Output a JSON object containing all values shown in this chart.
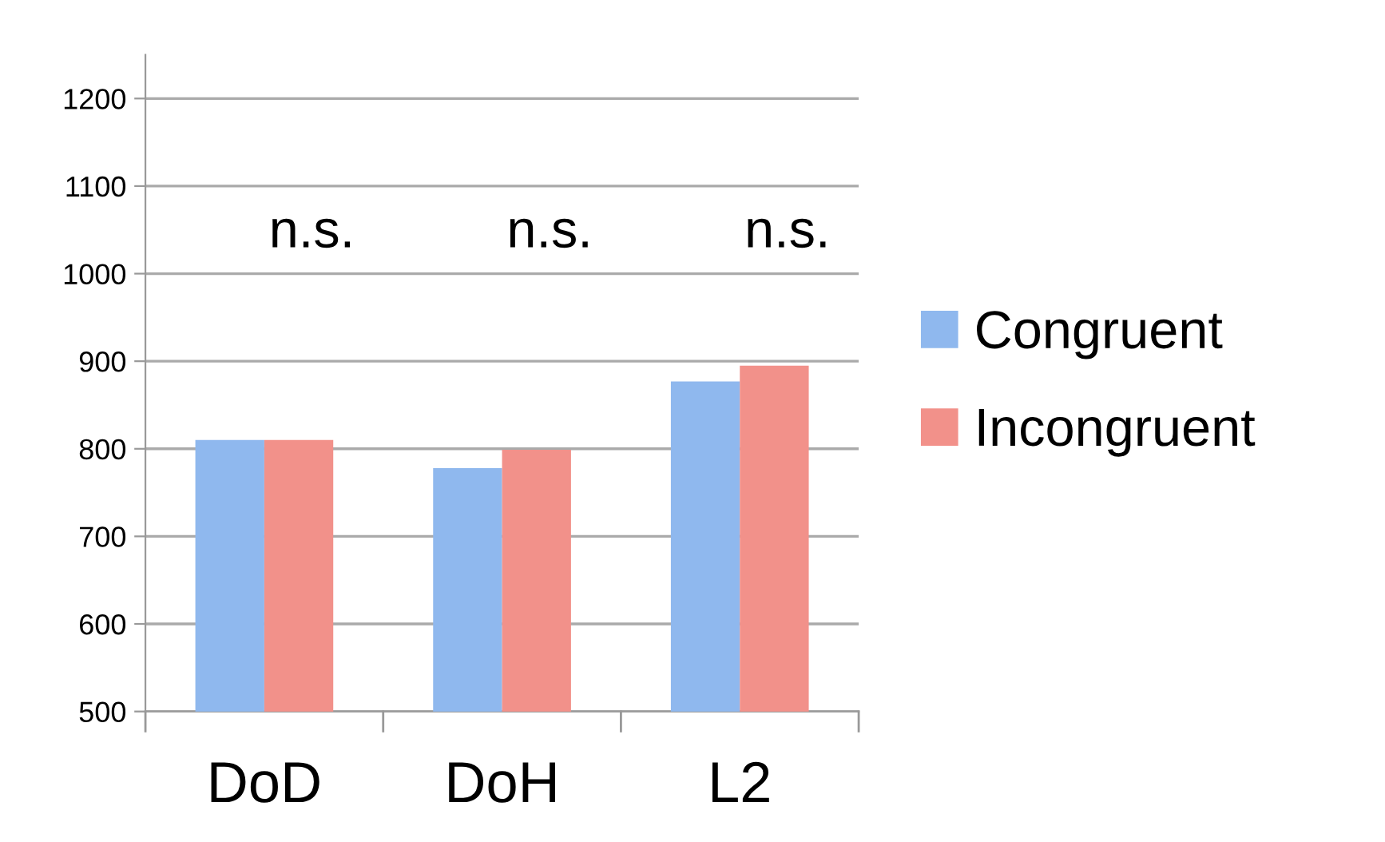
{
  "chart_data": {
    "type": "bar",
    "categories": [
      "DoD",
      "DoH",
      "L2"
    ],
    "series": [
      {
        "name": "Congruent",
        "color": "#8fb8ee",
        "values": [
          810,
          778,
          877
        ]
      },
      {
        "name": "Incongruent",
        "color": "#f2918a",
        "values": [
          810,
          799,
          895
        ]
      }
    ],
    "ylim": [
      500,
      1250
    ],
    "yticks": [
      500,
      600,
      700,
      800,
      900,
      1000,
      1100,
      1200
    ],
    "grid": "y",
    "legend": "right",
    "annotations": [
      "n.s.",
      "n.s.",
      "n.s."
    ]
  }
}
